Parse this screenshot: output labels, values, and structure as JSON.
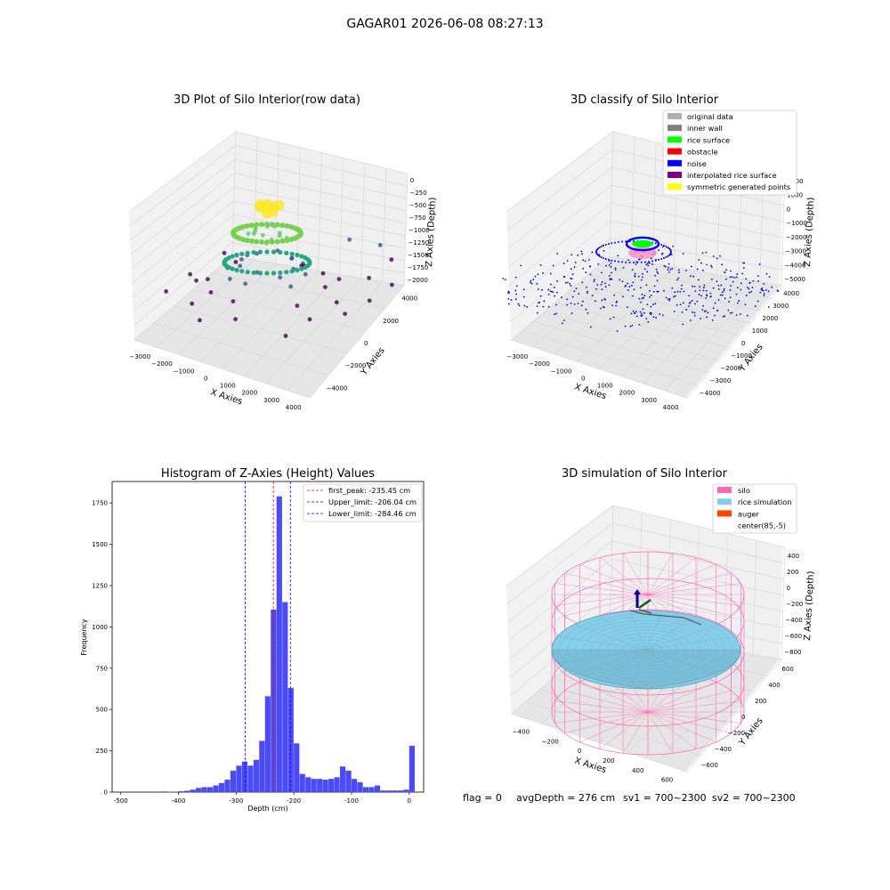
{
  "figure": {
    "title": "GAGAR01 2026-06-08 08:27:13",
    "footer": {
      "flag": "flag = 0",
      "avg": "avgDepth = 276 cm",
      "sv1": "sv1 = 700~2300",
      "sv2": "sv2 = 700~2300"
    }
  },
  "colors": {
    "histogram_bar": "#4b4bf5",
    "silo": "#ff69b4",
    "rice_simulation": "#87ceeb",
    "auger": "#ff4500",
    "noise": "#0000cd",
    "rice_surface": "#00ff00"
  },
  "chart_data": [
    {
      "type": "scatter",
      "projection": "3d",
      "title": "3D Plot of Silo Interior(row data)",
      "xlabel": "X Axies",
      "ylabel": "Y Axies",
      "zlabel": "Z Axies (Depth)",
      "xticks": [
        "−3000",
        "−2000",
        "−1000",
        "0",
        "1000",
        "2000",
        "3000",
        "4000"
      ],
      "yticks": [
        "−4000",
        "−2000",
        "0",
        "2000",
        "4000"
      ],
      "zticks": [
        "0",
        "−250",
        "−500",
        "−750",
        "−1000",
        "−1250",
        "−1500",
        "−1750",
        "−2000"
      ],
      "colormap": "viridis",
      "series": [
        {
          "values": [
            [
              0,
              0,
              -250
            ],
            [
              200,
              100,
              -200
            ],
            [
              -200,
              -100,
              -220
            ],
            [
              100,
              -300,
              -260
            ],
            [
              -300,
              200,
              -240
            ],
            [
              300,
              300,
              -210
            ],
            [
              -100,
              300,
              -230
            ],
            [
              250,
              -150,
              -250
            ],
            [
              0,
              -400,
              -700
            ],
            [
              400,
              100,
              -720
            ],
            [
              -400,
              0,
              -740
            ],
            [
              300,
              -400,
              -760
            ],
            [
              -300,
              -400,
              -700
            ],
            [
              100,
              400,
              -680
            ],
            [
              -500,
              300,
              -760
            ],
            [
              500,
              -200,
              -700
            ],
            [
              -600,
              -100,
              -800
            ],
            [
              600,
              200,
              -820
            ],
            [
              -200,
              600,
              -760
            ],
            [
              200,
              -600,
              -800
            ],
            [
              0,
              -900,
              -1350
            ],
            [
              900,
              0,
              -1380
            ],
            [
              -900,
              100,
              -1400
            ],
            [
              700,
              -700,
              -1420
            ],
            [
              -700,
              -600,
              -1360
            ],
            [
              600,
              700,
              -1340
            ],
            [
              -600,
              700,
              -1380
            ],
            [
              0,
              1000,
              -1320
            ],
            [
              -1200,
              -400,
              -1500
            ],
            [
              1200,
              300,
              -1520
            ],
            [
              -300,
              -1200,
              -1550
            ],
            [
              400,
              1200,
              -1480
            ],
            [
              1100,
              -800,
              -1540
            ],
            [
              -1000,
              900,
              -1500
            ],
            [
              900,
              900,
              -1460
            ],
            [
              -900,
              -1000,
              -1560
            ],
            [
              -1800,
              -600,
              -1750
            ],
            [
              1800,
              500,
              -1760
            ],
            [
              -500,
              -1800,
              -1800
            ],
            [
              600,
              1800,
              -1740
            ],
            [
              1500,
              -1300,
              -1780
            ],
            [
              -1500,
              1200,
              -1760
            ],
            [
              1400,
              1400,
              -1720
            ],
            [
              -1400,
              -1400,
              -1800
            ],
            [
              -2300,
              -300,
              -1900
            ],
            [
              2300,
              200,
              -1950
            ],
            [
              -200,
              -2400,
              -2000
            ],
            [
              300,
              2400,
              -1900
            ],
            [
              2000,
              -1500,
              -1960
            ],
            [
              -2000,
              1500,
              -1920
            ],
            [
              1800,
              1800,
              -1880
            ],
            [
              -1900,
              -1800,
              -2000
            ],
            [
              -2800,
              500,
              -2000
            ],
            [
              2800,
              -400,
              -2000
            ],
            [
              3200,
              800,
              -1950
            ],
            [
              -3000,
              -1200,
              -2000
            ],
            [
              2600,
              2400,
              -1900
            ],
            [
              -2400,
              2600,
              -1980
            ],
            [
              1500,
              3600,
              -1500
            ],
            [
              3000,
              3400,
              -1700
            ],
            [
              3600,
              1800,
              -1800
            ],
            [
              1800,
              -3200,
              -1950
            ],
            [
              -1200,
              -3000,
              -2000
            ],
            [
              2400,
              4000,
              -1600
            ]
          ]
        }
      ]
    },
    {
      "type": "scatter",
      "projection": "3d",
      "title": "3D classify of Silo Interior",
      "xlabel": "X Axies",
      "ylabel": "Y Axies",
      "zlabel": "Z Axies (Depth)",
      "xticks": [
        "−3000",
        "−2000",
        "−1000",
        "0",
        "1000",
        "2000",
        "3000",
        "4000"
      ],
      "yticks": [
        "−4000",
        "−3000",
        "−2000",
        "−1000",
        "0",
        "1000",
        "2000",
        "3000",
        "4000"
      ],
      "zticks": [
        "2000",
        "1000",
        "0",
        "−1000",
        "−2000",
        "−3000",
        "−4000",
        "−5000"
      ],
      "legend": {
        "position": "upper right",
        "entries": [
          {
            "label": "original data",
            "color": "#b0b0b0"
          },
          {
            "label": "inner wall",
            "color": "#808080"
          },
          {
            "label": "rice surface",
            "color": "#00ff00"
          },
          {
            "label": "obstacle",
            "color": "#ff0000"
          },
          {
            "label": "noise",
            "color": "#0000ff"
          },
          {
            "label": "interpolated rice surface",
            "color": "#800080"
          },
          {
            "label": "symmetric generated points",
            "color": "#ffff00"
          }
        ]
      }
    },
    {
      "type": "bar",
      "title": "Histogram of Z-Axies (Height) Values",
      "xlabel": "Depth (cm)",
      "ylabel": "Frequency",
      "xlim": [
        -515,
        25
      ],
      "ylim": [
        0,
        1880
      ],
      "xticks": [
        -500,
        -400,
        -300,
        -200,
        -100,
        0
      ],
      "yticks": [
        0,
        250,
        500,
        750,
        1000,
        1250,
        1500,
        1750
      ],
      "bin_width": 10,
      "bins": [
        [
          -430,
          4
        ],
        [
          -420,
          2
        ],
        [
          -410,
          2
        ],
        [
          -400,
          5
        ],
        [
          -390,
          8
        ],
        [
          -380,
          15
        ],
        [
          -370,
          25
        ],
        [
          -360,
          30
        ],
        [
          -350,
          30
        ],
        [
          -340,
          40
        ],
        [
          -330,
          55
        ],
        [
          -320,
          75
        ],
        [
          -310,
          130
        ],
        [
          -300,
          160
        ],
        [
          -290,
          185
        ],
        [
          -280,
          160
        ],
        [
          -270,
          195
        ],
        [
          -260,
          310
        ],
        [
          -250,
          580
        ],
        [
          -240,
          1105
        ],
        [
          -230,
          1790
        ],
        [
          -220,
          1150
        ],
        [
          -210,
          630
        ],
        [
          -200,
          295
        ],
        [
          -190,
          110
        ],
        [
          -180,
          90
        ],
        [
          -170,
          80
        ],
        [
          -160,
          80
        ],
        [
          -150,
          75
        ],
        [
          -140,
          80
        ],
        [
          -130,
          90
        ],
        [
          -120,
          155
        ],
        [
          -110,
          130
        ],
        [
          -100,
          80
        ],
        [
          -90,
          60
        ],
        [
          -80,
          30
        ],
        [
          -70,
          30
        ],
        [
          -60,
          40
        ],
        [
          -50,
          10
        ],
        [
          -40,
          10
        ],
        [
          -30,
          10
        ],
        [
          -20,
          10
        ],
        [
          -10,
          15
        ],
        [
          0,
          280
        ]
      ],
      "lines": [
        {
          "label": "first_peak: -235.45 cm",
          "x": -235.45,
          "color": "#ff0000"
        },
        {
          "label": "Upper_limit: -206.04 cm",
          "x": -206.04,
          "color": "#0000ff"
        },
        {
          "label": "Lower_limit: -284.46 cm",
          "x": -284.46,
          "color": "#0000ff"
        }
      ],
      "legend": "upper right"
    },
    {
      "type": "surface",
      "projection": "3d",
      "title": "3D simulation of Silo Interior",
      "xlabel": "X Axies",
      "ylabel": "Y Axies",
      "zlabel": "Z Axies (Depth)",
      "xticks": [
        "−400",
        "−200",
        "0",
        "200",
        "400",
        "600"
      ],
      "yticks": [
        "−600",
        "−400",
        "−200",
        "0",
        "200",
        "400",
        "600"
      ],
      "zticks": [
        "400",
        "200",
        "0",
        "−200",
        "−400",
        "−600",
        "−800"
      ],
      "legend": {
        "position": "upper right",
        "entries": [
          {
            "label": "silo",
            "color": "#ff69b4"
          },
          {
            "label": "rice simulation",
            "color": "#87ceeb"
          },
          {
            "label": "auger",
            "color": "#ff4500"
          },
          {
            "label": "center(85,-5)",
            "color": "#ffffff"
          }
        ]
      }
    }
  ]
}
